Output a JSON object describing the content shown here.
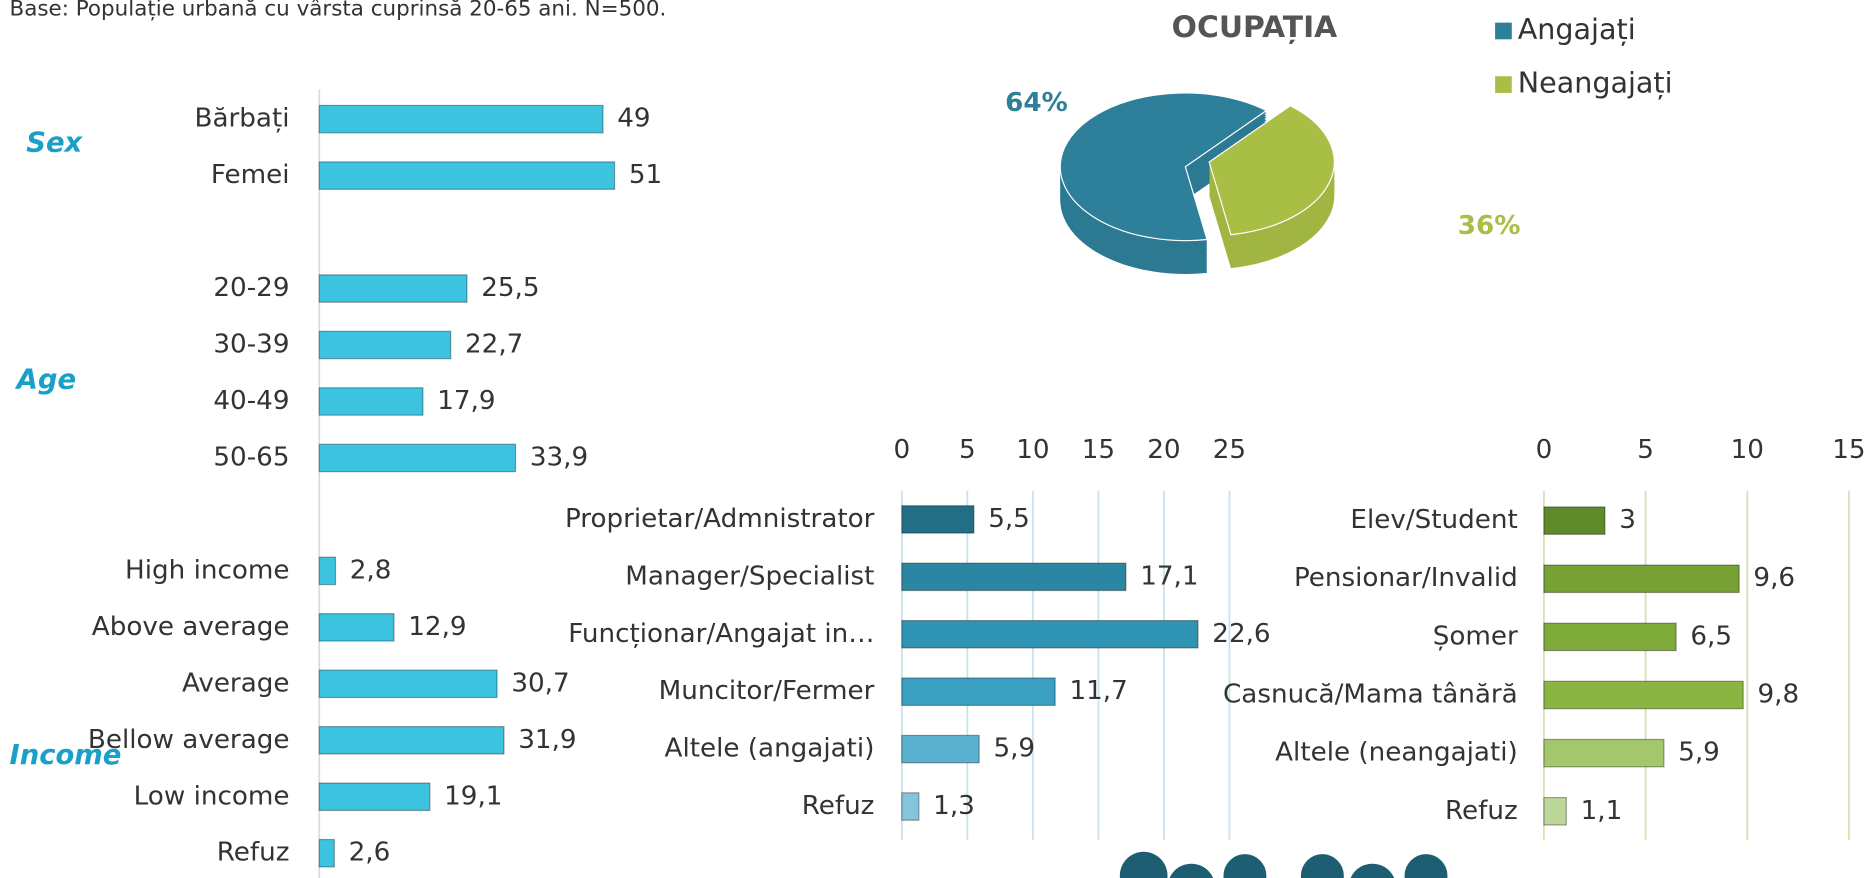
{
  "caption": "Base: Populație urbană cu vârsta cuprinsă 20-65 ani. N=500.",
  "chart_data": [
    {
      "type": "bar",
      "orientation": "horizontal",
      "color": "#3cc3e0",
      "xlim": [
        0,
        100
      ],
      "groups": [
        {
          "name": "Sex",
          "categories": [
            "Bărbați",
            "Femei"
          ],
          "values": [
            49,
            51
          ],
          "value_labels": [
            "49",
            "51"
          ]
        },
        {
          "name": "Age",
          "categories": [
            "20-29",
            "30-39",
            "40-49",
            "50-65"
          ],
          "values": [
            25.5,
            22.7,
            17.9,
            33.9
          ],
          "value_labels": [
            "25,5",
            "22,7",
            "17,9",
            "33,9"
          ]
        },
        {
          "name": "Income",
          "categories": [
            "High income",
            "Above average",
            "Average",
            "Bellow average",
            "Low income",
            "Refuz"
          ],
          "values": [
            2.8,
            12.9,
            30.7,
            31.9,
            19.1,
            2.6
          ],
          "value_labels": [
            "2,8",
            "12,9",
            "30,7",
            "31,9",
            "19,1",
            "2,6"
          ]
        }
      ]
    },
    {
      "type": "pie",
      "title": "OCUPAȚIA",
      "series": [
        {
          "name": "Angajați",
          "color": "#2e7f99"
        },
        {
          "name": "Neangajați",
          "color": "#a9be45"
        }
      ],
      "values": [
        64,
        36
      ],
      "value_labels": [
        "64%",
        "36%"
      ]
    },
    {
      "type": "bar",
      "orientation": "horizontal",
      "xlim": [
        0,
        25
      ],
      "xticks": [
        0,
        5,
        10,
        15,
        20,
        25
      ],
      "grid": true,
      "grid_color": "#c9e3ee",
      "categories": [
        "Proprietar/Admnistrator",
        "Manager/Specialist",
        "Funcționar/Angajat in…",
        "Muncitor/Fermer",
        "Altele (angajati)",
        "Refuz"
      ],
      "values": [
        5.5,
        17.1,
        22.6,
        11.7,
        5.9,
        1.3
      ],
      "value_labels": [
        "5,5",
        "17,1",
        "22,6",
        "11,7",
        "5,9",
        "1,3"
      ],
      "colors": [
        "#216e85",
        "#2a86a3",
        "#2f94b3",
        "#3a9fc0",
        "#5ab0cf",
        "#86c4dc"
      ]
    },
    {
      "type": "bar",
      "orientation": "horizontal",
      "xlim": [
        0,
        15
      ],
      "xticks": [
        0,
        5,
        10,
        15
      ],
      "grid": true,
      "grid_color": "#d5e3b4",
      "categories": [
        "Elev/Student",
        "Pensionar/Invalid",
        "Șomer",
        "Casnucă/Mama tânără",
        "Altele (neangajati)",
        "Refuz"
      ],
      "values": [
        3,
        9.6,
        6.5,
        9.8,
        5.9,
        1.1
      ],
      "value_labels": [
        "3",
        "9,6",
        "6,5",
        "9,8",
        "5,9",
        "1,1"
      ],
      "colors": [
        "#5e8a2a",
        "#77a135",
        "#7fab3a",
        "#8ab543",
        "#a4c76c",
        "#bdd79a"
      ]
    }
  ]
}
